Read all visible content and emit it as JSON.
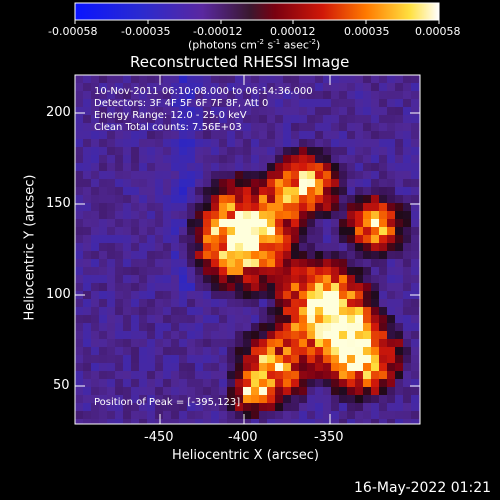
{
  "colorbar": {
    "tick_labels": [
      "-0.00058",
      "-0.00035",
      "-0.00012",
      "0.00012",
      "0.00035",
      "0.00058"
    ],
    "units_prefix": "(photons cm",
    "units_exp1": "-2",
    "units_mid": " s",
    "units_exp2": "-1",
    "units_mid2": " asec",
    "units_exp3": "-2",
    "units_suffix": ")"
  },
  "plot": {
    "title": "Reconstructed RHESSI Image",
    "xlabel": "Heliocentric X (arcsec)",
    "ylabel": "Heliocentric Y (arcsec)",
    "x_ticks": [
      "-450",
      "-400",
      "-350"
    ],
    "y_ticks": [
      "200",
      "150",
      "100",
      "50"
    ],
    "xlim": [
      -493,
      -305
    ],
    "ylim": [
      30,
      222
    ]
  },
  "annotations": {
    "time_range": "10-Nov-2011 06:10:08.000 to 06:14:36.000",
    "detectors": "Detectors: 3F 4F 5F 6F 7F 8F, Att 0",
    "energy": "Energy Range: 12.0 - 25.0 keV",
    "method": "Clean     Total counts: 7.56E+03",
    "peak": "Position of Peak = [-395,123]"
  },
  "footer": {
    "date": "16-May-2022 01:21"
  }
}
